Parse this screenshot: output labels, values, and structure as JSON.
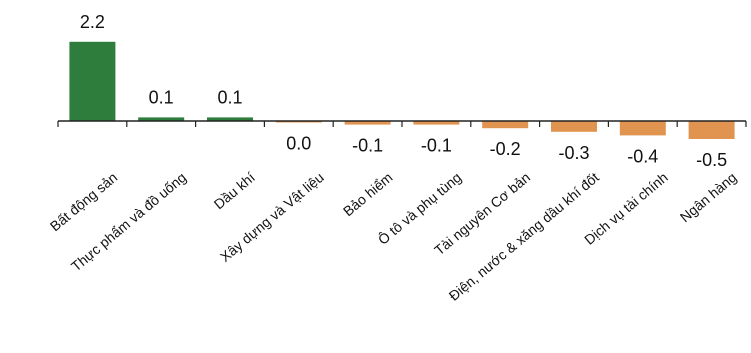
{
  "chart_data": {
    "type": "bar",
    "title": "",
    "xlabel": "",
    "ylabel": "",
    "categories": [
      "Bất động sản",
      "Thực phẩm và đồ uống",
      "Dầu khí",
      "Xây dựng và Vật liệu",
      "Bảo hiểm",
      "Ô tô và phụ tùng",
      "Tài nguyên Cơ bản",
      "Điện, nước & xăng dầu khí đốt",
      "Dịch vụ tài chính",
      "Ngân hàng"
    ],
    "values": [
      2.2,
      0.1,
      0.1,
      -0.04,
      -0.1,
      -0.1,
      -0.2,
      -0.3,
      -0.4,
      -0.5
    ],
    "labels": [
      "2.2",
      "0.1",
      "0.1",
      "0.0",
      "-0.1",
      "-0.1",
      "-0.2",
      "-0.3",
      "-0.4",
      "-0.5"
    ],
    "ylim": [
      -0.6,
      2.6
    ],
    "grid": false,
    "legend": "none",
    "colors": {
      "positive": "#2e7d3c",
      "negative": "#e0944f",
      "axis": "#222222"
    }
  }
}
